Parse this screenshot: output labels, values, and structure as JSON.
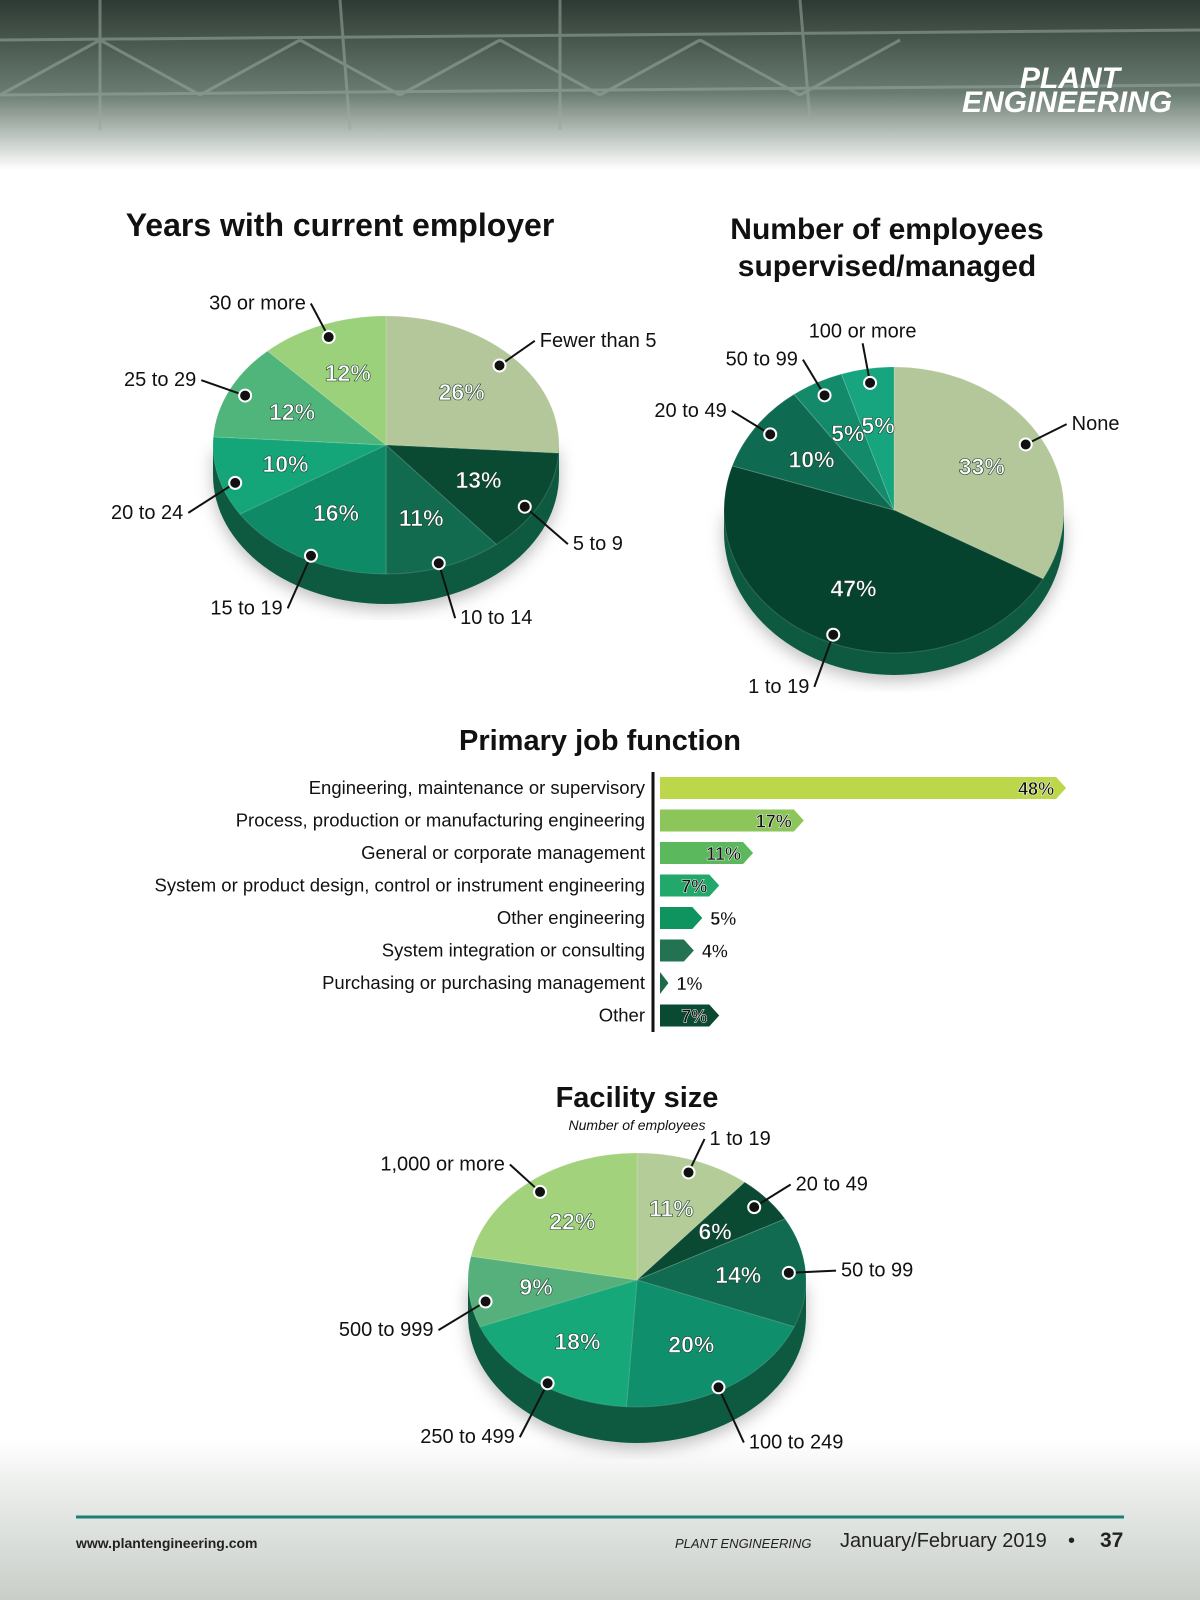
{
  "header": {
    "logo": [
      "PLANT",
      "ENGINEERING"
    ]
  },
  "chart_data": [
    {
      "type": "pie",
      "title": "Years with current employer",
      "categories": [
        "Fewer than 5",
        "5 to 9",
        "10 to 14",
        "15 to 19",
        "20 to 24",
        "25 to 29",
        "30 or more"
      ],
      "values": [
        26,
        13,
        11,
        16,
        10,
        12,
        12
      ],
      "value_labels": [
        "26%",
        "13%",
        "11%",
        "16%",
        "10%",
        "12%",
        "12%"
      ],
      "colors": [
        "#b3c79b",
        "#0a4a33",
        "#136b4f",
        "#0f8a66",
        "#14a578",
        "#4fb57a",
        "#9bd17a"
      ]
    },
    {
      "type": "pie",
      "title": "Number of employees supervised/managed",
      "categories": [
        "None",
        "1 to 19",
        "20 to 49",
        "50 to 99",
        "100 or more"
      ],
      "values": [
        33,
        47,
        10,
        5,
        5
      ],
      "value_labels": [
        "33%",
        "47%",
        "10%",
        "5%",
        "5%"
      ],
      "colors": [
        "#b3c79b",
        "#06432f",
        "#0e6a50",
        "#138a6a",
        "#16a57e"
      ]
    },
    {
      "type": "bar",
      "orientation": "horizontal",
      "title": "Primary job function",
      "categories": [
        "Engineering, maintenance or supervisory",
        "Process, production or manufacturing engineering",
        "General or corporate management",
        "System or product design, control or instrument engineering",
        "Other engineering",
        "System integration or consulting",
        "Purchasing or purchasing management",
        "Other"
      ],
      "values": [
        48,
        17,
        11,
        7,
        5,
        4,
        1,
        7
      ],
      "value_labels": [
        "48%",
        "17%",
        "11%",
        "7%",
        "5%",
        "4%",
        "1%",
        "7%"
      ],
      "colors": [
        "#bcd84a",
        "#8cc65a",
        "#5cb85c",
        "#22a86a",
        "#0f9460",
        "#237352",
        "#1f6a4a",
        "#0b4a32"
      ]
    },
    {
      "type": "pie",
      "title": "Facility size",
      "subtitle": "Number of employees",
      "categories": [
        "1 to 19",
        "20 to 49",
        "50 to 99",
        "100 to 249",
        "250 to 499",
        "500 to 999",
        "1,000 or more"
      ],
      "values": [
        11,
        6,
        14,
        20,
        18,
        9,
        22
      ],
      "value_labels": [
        "11%",
        "6%",
        "14%",
        "20%",
        "18%",
        "9%",
        "22%"
      ],
      "colors": [
        "#b4cc98",
        "#0a4a33",
        "#106b50",
        "#0f8f6c",
        "#16a878",
        "#56b07c",
        "#a2d27c"
      ]
    }
  ],
  "footer": {
    "url": "www.plantengineering.com",
    "magazine": "PLANT ENGINEERING",
    "issue": "January/February 2019",
    "separator": "•",
    "page": "37"
  }
}
